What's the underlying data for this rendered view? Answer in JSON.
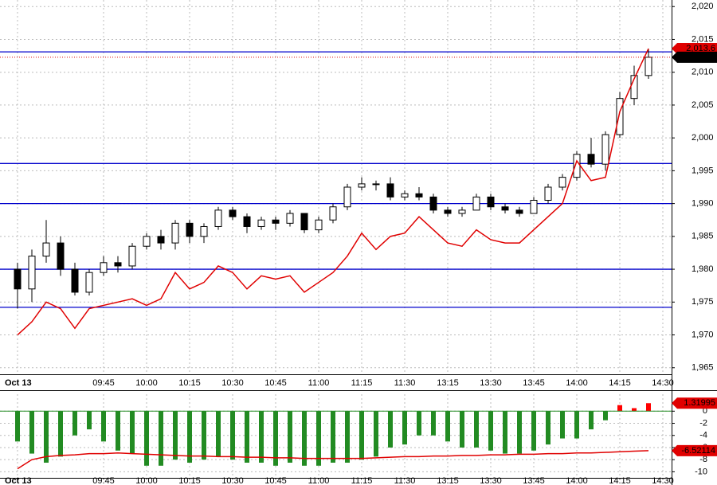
{
  "chart_data": [
    {
      "type": "candlestick",
      "categories": [
        "Oct 13",
        null,
        null,
        null,
        null,
        null,
        "09:45",
        null,
        null,
        "10:00",
        null,
        null,
        "10:15",
        null,
        null,
        "10:30",
        null,
        null,
        "10:45",
        null,
        null,
        "11:00",
        null,
        null,
        "11:15",
        null,
        null,
        "11:30",
        null,
        null,
        "13:15",
        null,
        null,
        "13:30",
        null,
        null,
        "13:45",
        null,
        null,
        "14:00",
        null,
        null,
        "14:15",
        null,
        null,
        "14:30"
      ],
      "open": [
        1980,
        1977,
        1982,
        1984,
        1980,
        1976.5,
        1979.5,
        1981,
        1980.5,
        1983.5,
        1985,
        1984,
        1987,
        1985,
        1986.5,
        1989,
        1988,
        1986.5,
        1987.5,
        1987,
        1988.5,
        1986,
        1987.5,
        1989.5,
        1992.5,
        1993,
        1993,
        1991,
        1991.5,
        1991,
        1989,
        1988.5,
        1989,
        1991,
        1989.5,
        1989,
        1988.5,
        1990.5,
        1992.5,
        1994,
        1997.5,
        1996,
        2000.5,
        2006,
        2009.5,
        null
      ],
      "high": [
        1981,
        1983,
        1987.5,
        1985,
        1981,
        1980,
        1982,
        1982,
        1984,
        1985.5,
        1986,
        1987.5,
        1987.5,
        1987,
        1989.5,
        1989.5,
        1988.5,
        1988,
        1988,
        1989,
        1988.5,
        1988,
        1990,
        1993,
        1994,
        1993.5,
        1994,
        1992,
        1992.5,
        1991.5,
        1989.5,
        1989.5,
        1991.5,
        1991.5,
        1990,
        1989.5,
        1991,
        1993,
        1994.5,
        1998,
        2000,
        2001,
        2007,
        2011,
        2013.6,
        null
      ],
      "low": [
        1974,
        1975,
        1981,
        1979,
        1976,
        1976,
        1979,
        1979.5,
        1980,
        1983,
        1983,
        1983,
        1984,
        1984,
        1986,
        1987.5,
        1985.5,
        1986,
        1986,
        1986.5,
        1985.5,
        1985.5,
        1987,
        1989,
        1992,
        1992,
        1990.5,
        1990.5,
        1990.5,
        1988.5,
        1988,
        1988,
        1989,
        1989,
        1988.5,
        1988,
        1988.5,
        1990,
        1992,
        1993.5,
        1995.5,
        1995,
        2000,
        2005,
        2009,
        null
      ],
      "close": [
        1977,
        1982,
        1984,
        1980,
        1976.5,
        1979.5,
        1981,
        1980.5,
        1983.5,
        1985,
        1984,
        1987,
        1985,
        1986.5,
        1989,
        1988,
        1986.5,
        1987.5,
        1987,
        1988.5,
        1986,
        1987.5,
        1989.5,
        1992.5,
        1993,
        1993,
        1991,
        1991.5,
        1991,
        1989,
        1988.5,
        1989,
        1991,
        1989.5,
        1989,
        1988.5,
        1990.5,
        1992.5,
        1994,
        1997.5,
        1996,
        2000.5,
        2006,
        2009.5,
        2012.28,
        null
      ],
      "line": {
        "color": "#e00000",
        "values": [
          1970,
          1972,
          1975,
          1974,
          1971,
          1974,
          1974.5,
          1975,
          1975.5,
          1974.5,
          1975.5,
          1979.5,
          1977,
          1978,
          1980.5,
          1979.5,
          1977,
          1979,
          1978.5,
          1979,
          1976.5,
          1978,
          1979.5,
          1982,
          1985.5,
          1983,
          1985,
          1985.5,
          1988,
          1986,
          1984,
          1983.5,
          1986,
          1984.5,
          1984,
          1984,
          1986,
          1988,
          1990,
          1996.5,
          1993.5,
          1994,
          2004,
          2009,
          2013.6,
          null
        ]
      },
      "levels": {
        "color": "#0000cc",
        "values": [
          2013.1,
          1996.1,
          1990,
          1980,
          1974.2
        ]
      },
      "ylim": [
        1964,
        2021
      ],
      "yticks": [
        {
          "value": 1965,
          "label": "1,965"
        },
        {
          "value": 1970,
          "label": "1,970"
        },
        {
          "value": 1975,
          "label": "1,975"
        },
        {
          "value": 1980,
          "label": "1,980"
        },
        {
          "value": 1985,
          "label": "1,985"
        },
        {
          "value": 1990,
          "label": "1,990"
        },
        {
          "value": 1995,
          "label": "1,995"
        },
        {
          "value": 2000,
          "label": "2,000"
        },
        {
          "value": 2005,
          "label": "2,005"
        },
        {
          "value": 2010,
          "label": "2,010"
        },
        {
          "value": 2015,
          "label": "2,015"
        },
        {
          "value": 2020,
          "label": "2,020"
        }
      ],
      "grid": true,
      "price_labels": [
        {
          "value": 2013.6,
          "label": "2,013.6",
          "color": "#e00000"
        },
        {
          "value": 2012.28,
          "label": "2,012.28",
          "color": "#000000"
        }
      ]
    },
    {
      "type": "bar",
      "categories": [
        "Oct 13",
        null,
        null,
        null,
        null,
        null,
        "09:45",
        null,
        null,
        "10:00",
        null,
        null,
        "10:15",
        null,
        null,
        "10:30",
        null,
        null,
        "10:45",
        null,
        null,
        "11:00",
        null,
        null,
        "11:15",
        null,
        null,
        "11:30",
        null,
        null,
        "13:15",
        null,
        null,
        "13:30",
        null,
        null,
        "13:45",
        null,
        null,
        "14:00",
        null,
        null,
        "14:15",
        null,
        null,
        "14:30"
      ],
      "values": [
        -5,
        -7,
        -8.5,
        -7.5,
        -4,
        -3,
        -5,
        -6.5,
        -7,
        -9,
        -9,
        -8,
        -8.5,
        -8,
        -7.5,
        -8,
        -8.5,
        -8.5,
        -9,
        -8.5,
        -9,
        -9,
        -8.5,
        -8.5,
        -8,
        -7.5,
        -6,
        -5.5,
        -4,
        -4,
        -5,
        -6,
        -6,
        -6.5,
        -7,
        -7,
        -6.5,
        -5.5,
        -4.5,
        -4.5,
        -3,
        -1.5,
        1,
        0.5,
        1.31995,
        null
      ],
      "up_color": "#ff0000",
      "down_color": "#228b22",
      "line": {
        "color": "#e00000",
        "values": [
          -9.5,
          -8,
          -7.5,
          -7.3,
          -7.2,
          -7,
          -7,
          -6.9,
          -7,
          -7.1,
          -7.2,
          -7.3,
          -7.4,
          -7.4,
          -7.5,
          -7.5,
          -7.6,
          -7.6,
          -7.7,
          -7.7,
          -7.8,
          -7.8,
          -7.8,
          -7.8,
          -7.8,
          -7.7,
          -7.6,
          -7.5,
          -7.5,
          -7.4,
          -7.4,
          -7.3,
          -7.3,
          -7.2,
          -7.2,
          -7.1,
          -7.1,
          -7,
          -7,
          -6.9,
          -6.9,
          -6.8,
          -6.7,
          -6.6,
          -6.52114,
          null
        ]
      },
      "ylim": [
        -11,
        2.8
      ],
      "yticks": [
        0,
        -2,
        -4,
        -6,
        -8,
        -10
      ],
      "grid": true,
      "price_labels": [
        {
          "value": 1.31995,
          "label": "1.31995",
          "color": "#e00000"
        },
        {
          "value": -6.52114,
          "label": "-6.52114",
          "color": "#e00000"
        }
      ]
    }
  ]
}
